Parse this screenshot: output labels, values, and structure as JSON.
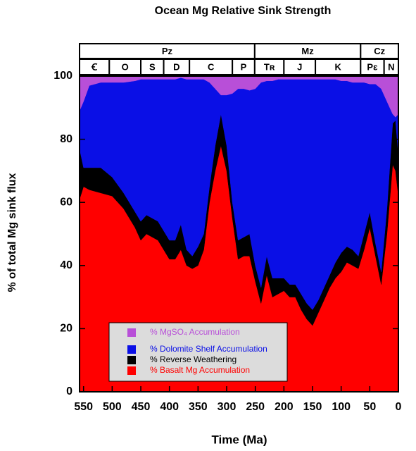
{
  "chart_data": {
    "type": "stacked-area",
    "title": "Ocean Mg Relative Sink Strength",
    "x_label": "Time (Ma)",
    "y_label": "% of total Mg sink flux",
    "xlim": [
      557,
      0
    ],
    "xticks": [
      550,
      500,
      450,
      400,
      350,
      300,
      250,
      200,
      150,
      100,
      50,
      0
    ],
    "ylim": [
      0,
      100
    ],
    "yticks": [
      0,
      20,
      40,
      60,
      80,
      100
    ],
    "eras": [
      {
        "label": "Pz",
        "start": 557,
        "end": 251
      },
      {
        "label": "Mz",
        "start": 251,
        "end": 66
      },
      {
        "label": "Cz",
        "start": 66,
        "end": 0
      }
    ],
    "periods": [
      {
        "label": "Ꞓ",
        "start": 557,
        "end": 505
      },
      {
        "label": "O",
        "start": 505,
        "end": 450
      },
      {
        "label": "S",
        "start": 450,
        "end": 410
      },
      {
        "label": "D",
        "start": 410,
        "end": 365
      },
      {
        "label": "C",
        "start": 365,
        "end": 290
      },
      {
        "label": "P",
        "start": 290,
        "end": 251
      },
      {
        "label": "Tʀ",
        "start": 251,
        "end": 200
      },
      {
        "label": "J",
        "start": 200,
        "end": 145
      },
      {
        "label": "K",
        "start": 145,
        "end": 66
      },
      {
        "label": "Pɛ",
        "start": 66,
        "end": 25
      },
      {
        "label": "N",
        "start": 25,
        "end": 0
      }
    ],
    "x": [
      557,
      550,
      540,
      520,
      500,
      480,
      460,
      450,
      440,
      420,
      400,
      390,
      380,
      370,
      360,
      350,
      340,
      330,
      320,
      310,
      300,
      290,
      280,
      270,
      260,
      250,
      240,
      230,
      220,
      210,
      200,
      190,
      180,
      170,
      160,
      150,
      140,
      130,
      120,
      110,
      100,
      90,
      80,
      70,
      60,
      50,
      40,
      30,
      20,
      10,
      5,
      0
    ],
    "series": [
      {
        "name": "% Basalt Mg Accumulation",
        "color": "#ff0000",
        "values": [
          61,
          65,
          64,
          63,
          62,
          58,
          52,
          48,
          50,
          48,
          42,
          42,
          45,
          40,
          39,
          40,
          45,
          60,
          70,
          78,
          70,
          55,
          42,
          43,
          43,
          35,
          28,
          37,
          30,
          31,
          32,
          30,
          30,
          26,
          23,
          21,
          25,
          29,
          33,
          36,
          38,
          41,
          40,
          39,
          45,
          52,
          43,
          34,
          50,
          72,
          70,
          62
        ]
      },
      {
        "name": "% Reverse Weathering",
        "color": "#000000",
        "values": [
          16,
          6,
          7,
          8,
          6,
          5,
          5,
          6,
          6,
          6,
          6,
          6,
          8,
          5,
          4,
          6,
          5,
          5,
          8,
          10,
          8,
          5,
          6,
          6,
          7,
          5,
          5,
          6,
          6,
          5,
          4,
          4,
          4,
          5,
          5,
          5,
          4,
          4,
          4,
          5,
          6,
          5,
          5,
          4,
          5,
          5,
          4,
          4,
          8,
          13,
          16,
          13
        ]
      },
      {
        "name": "% Dolomite Shelf Accumulation",
        "color": "#0a0fe6",
        "values": [
          12,
          21,
          26,
          27,
          30,
          35,
          41.5,
          45,
          43,
          45,
          51,
          51,
          46.5,
          54,
          56,
          53,
          49,
          33,
          18,
          6,
          16,
          34.5,
          48,
          47,
          45.5,
          56,
          65,
          55.5,
          62.5,
          63,
          63,
          65,
          65,
          68,
          71,
          73,
          70,
          66,
          62,
          58,
          54.5,
          52.5,
          53,
          55,
          48,
          40.5,
          50.5,
          58,
          34,
          3,
          1,
          13
        ]
      },
      {
        "name": "% MgSO₄ Accumulation",
        "color": "#b84fd8",
        "values": [
          11,
          8,
          3,
          2,
          2,
          2,
          1.5,
          1,
          1,
          1,
          1,
          1,
          0.5,
          1,
          1,
          1,
          1,
          2,
          4,
          6,
          6,
          5.5,
          4,
          4,
          4.5,
          4,
          2,
          1.5,
          1.5,
          1,
          1,
          1,
          1,
          1,
          1,
          1,
          1,
          1,
          1,
          1,
          1.5,
          1.5,
          2,
          2,
          2,
          2.5,
          2.5,
          4,
          8,
          12,
          13,
          12
        ]
      }
    ]
  }
}
